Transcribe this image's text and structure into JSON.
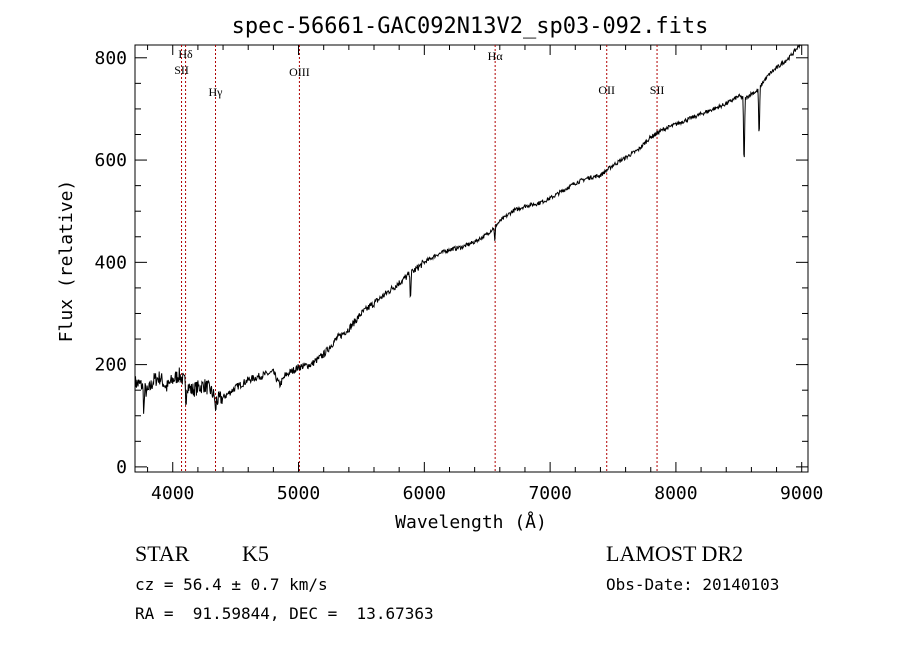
{
  "chart_data": {
    "type": "line",
    "title": "spec-56661-GAC092N13V2_sp03-092.fits",
    "xlabel": "Wavelength (Å)",
    "ylabel": "Flux (relative)",
    "xlim": [
      3700,
      9050
    ],
    "ylim": [
      -10,
      825
    ],
    "x_ticks": [
      4000,
      5000,
      6000,
      7000,
      8000,
      9000
    ],
    "y_ticks": [
      0,
      200,
      400,
      600,
      800
    ],
    "grid": false,
    "series": [
      {
        "color": "#000000",
        "x": [
          3700,
          3750,
          3800,
          3850,
          3900,
          3950,
          4000,
          4050,
          4100,
          4150,
          4200,
          4250,
          4300,
          4350,
          4400,
          4500,
          4600,
          4700,
          4800,
          4850,
          4900,
          5000,
          5100,
          5200,
          5300,
          5400,
          5500,
          5600,
          5700,
          5800,
          5900,
          6000,
          6100,
          6200,
          6300,
          6400,
          6500,
          6600,
          6700,
          6800,
          6900,
          7000,
          7100,
          7200,
          7300,
          7400,
          7500,
          7600,
          7700,
          7800,
          7900,
          8000,
          8100,
          8200,
          8300,
          8400,
          8500,
          8550,
          8600,
          8650,
          8700,
          8750,
          8800,
          8850,
          8900,
          8950,
          9000
        ],
        "y": [
          165,
          160,
          145,
          170,
          175,
          155,
          170,
          180,
          165,
          150,
          155,
          160,
          150,
          130,
          135,
          155,
          170,
          178,
          185,
          160,
          180,
          195,
          200,
          220,
          250,
          270,
          300,
          320,
          340,
          360,
          380,
          400,
          415,
          425,
          430,
          440,
          455,
          480,
          500,
          510,
          515,
          525,
          540,
          555,
          565,
          570,
          590,
          605,
          620,
          645,
          660,
          670,
          680,
          690,
          700,
          710,
          725,
          720,
          730,
          735,
          755,
          770,
          780,
          790,
          800,
          815,
          830
        ]
      }
    ],
    "absorption_dips": [
      {
        "x": 3770,
        "depth": 50
      },
      {
        "x": 4105,
        "depth": 40
      },
      {
        "x": 4340,
        "depth": 30
      },
      {
        "x": 5890,
        "depth": 50
      },
      {
        "x": 6560,
        "depth": 30
      },
      {
        "x": 8542,
        "depth": 150
      },
      {
        "x": 8662,
        "depth": 110
      }
    ],
    "annotations": [
      {
        "label": "Hδ",
        "x": 4102
      },
      {
        "label": "SII",
        "x": 4070
      },
      {
        "label": "Hγ",
        "x": 4340
      },
      {
        "label": "OIII",
        "x": 5007
      },
      {
        "label": "Hα",
        "x": 6563
      },
      {
        "label": "OII",
        "x": 7450
      },
      {
        "label": "SII",
        "x": 7850
      }
    ],
    "annotation_line_color": "#b00000"
  },
  "info": {
    "object_class": "STAR",
    "subclass": "K5",
    "survey": "LAMOST DR2",
    "cz": "cz = 56.4 ± 0.7 km/s",
    "obs_date": "Obs-Date: 20140103",
    "coords": "RA =  91.59844, DEC =  13.67363"
  }
}
